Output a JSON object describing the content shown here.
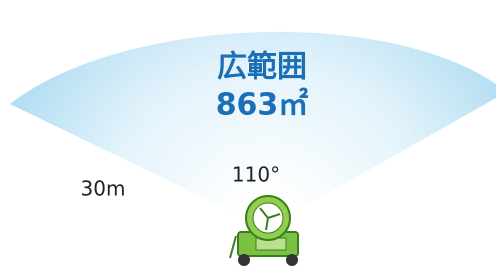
{
  "coverage": {
    "title": "広範囲",
    "area": "863㎡"
  },
  "angle": "110°",
  "distance": "30m"
}
